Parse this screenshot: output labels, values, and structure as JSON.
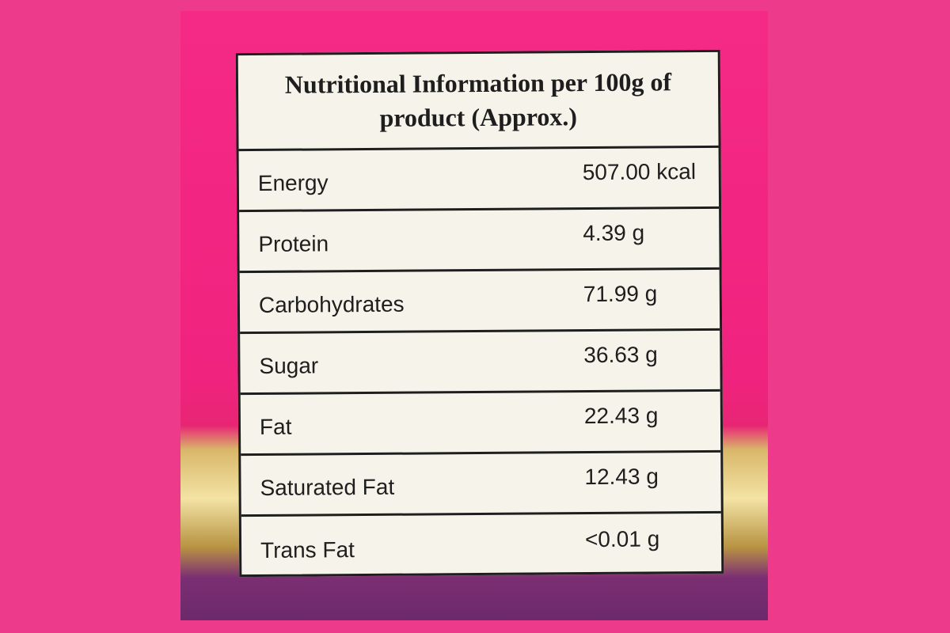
{
  "table": {
    "title": "Nutritional Information per 100g of product (Approx.)",
    "rows": [
      [
        "Energy",
        "507.00 kcal"
      ],
      [
        "Protein",
        "4.39 g"
      ],
      [
        "Carbohydrates",
        "71.99 g"
      ],
      [
        "Sugar",
        "36.63 g"
      ],
      [
        "Fat",
        "22.43 g"
      ],
      [
        "Saturated Fat",
        "12.43 g"
      ],
      [
        "Trans Fat",
        "<0.01 g"
      ]
    ]
  }
}
